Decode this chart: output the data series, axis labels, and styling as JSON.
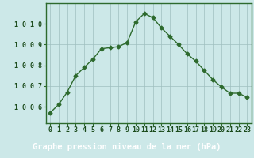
{
  "x": [
    0,
    1,
    2,
    3,
    4,
    5,
    6,
    7,
    8,
    9,
    10,
    11,
    12,
    13,
    14,
    15,
    16,
    17,
    18,
    19,
    20,
    21,
    22,
    23
  ],
  "y": [
    1005.7,
    1006.1,
    1006.7,
    1007.5,
    1007.9,
    1008.3,
    1008.8,
    1008.85,
    1008.9,
    1009.1,
    1010.1,
    1010.5,
    1010.3,
    1009.8,
    1009.4,
    1009.0,
    1008.55,
    1008.2,
    1007.75,
    1007.3,
    1006.95,
    1006.65,
    1006.65,
    1006.45
  ],
  "line_color": "#2d6a2d",
  "marker": "D",
  "markersize": 2.5,
  "linewidth": 1.0,
  "bg_color": "#cce8e8",
  "grid_color": "#9fbfbf",
  "xlabel": "Graphe pression niveau de la mer (hPa)",
  "xlabel_color": "#1a4a1a",
  "xlabel_fontsize": 7.5,
  "ylabel_ticks": [
    1006,
    1007,
    1008,
    1009,
    1010
  ],
  "ylim": [
    1005.2,
    1011.0
  ],
  "xlim": [
    -0.5,
    23.5
  ],
  "tick_fontsize": 6.0,
  "tick_color": "#1a4a1a",
  "border_color": "#2d6a2d",
  "bottom_bar_color": "#2d6a2d",
  "bottom_bar_height": 0.18
}
